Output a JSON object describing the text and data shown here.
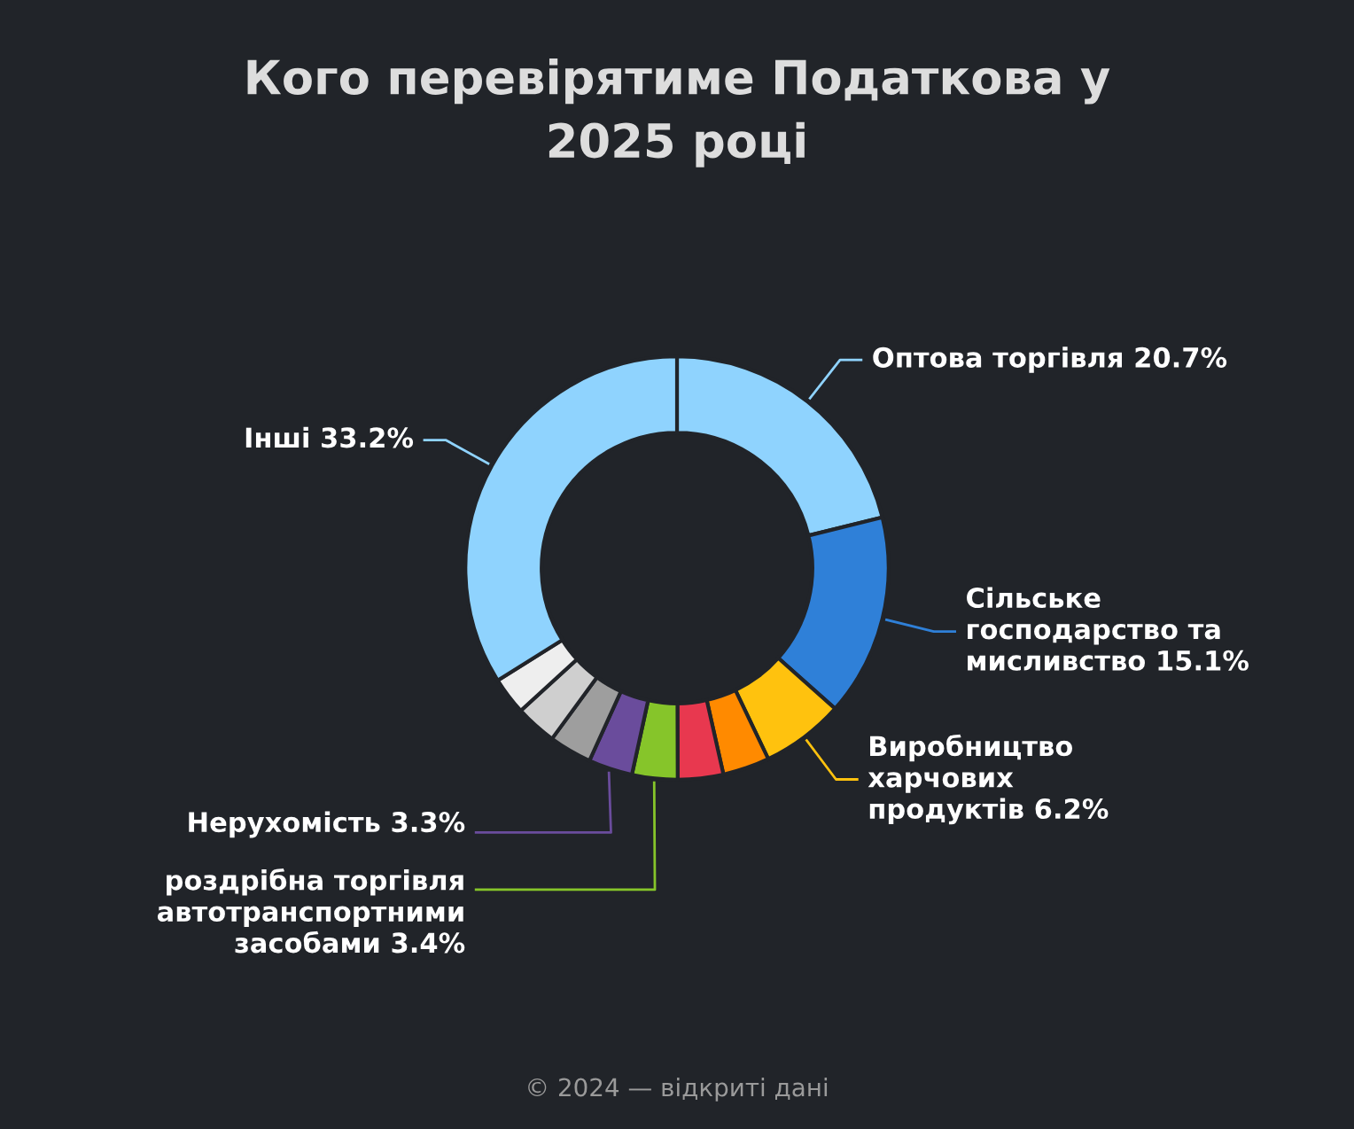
{
  "chart_data": {
    "type": "donut",
    "title": "Кого перевірятиме Податкова у\n2025 році",
    "categories": [
      "Оптова торгівля",
      "Сільське\nгосподарство та\nмисливство",
      "Виробництво\nхарчових\nпродуктів",
      null,
      null,
      "роздрібна торгівля\nавтотранспортними\nзасобами",
      "Нерухомість",
      null,
      null,
      null,
      "Інші"
    ],
    "values": [
      20.7,
      15.1,
      6.2,
      3.5,
      3.4,
      3.4,
      3.3,
      3.2,
      3.1,
      2.8,
      33.2
    ],
    "value_labels": [
      "20.7%",
      "15.1%",
      "6.2%",
      null,
      null,
      "3.4%",
      "3.3%",
      null,
      null,
      null,
      "33.2%"
    ],
    "colors": [
      "#8fd3fe",
      "#2f80d8",
      "#ffc20e",
      "#ff8a00",
      "#e8384f",
      "#86c52a",
      "#6a4c9c",
      "#9e9e9e",
      "#cfcfcf",
      "#eeeeee",
      "#8fd3fe"
    ],
    "annotations": [
      "© 2024 — відкриті дані"
    ]
  }
}
